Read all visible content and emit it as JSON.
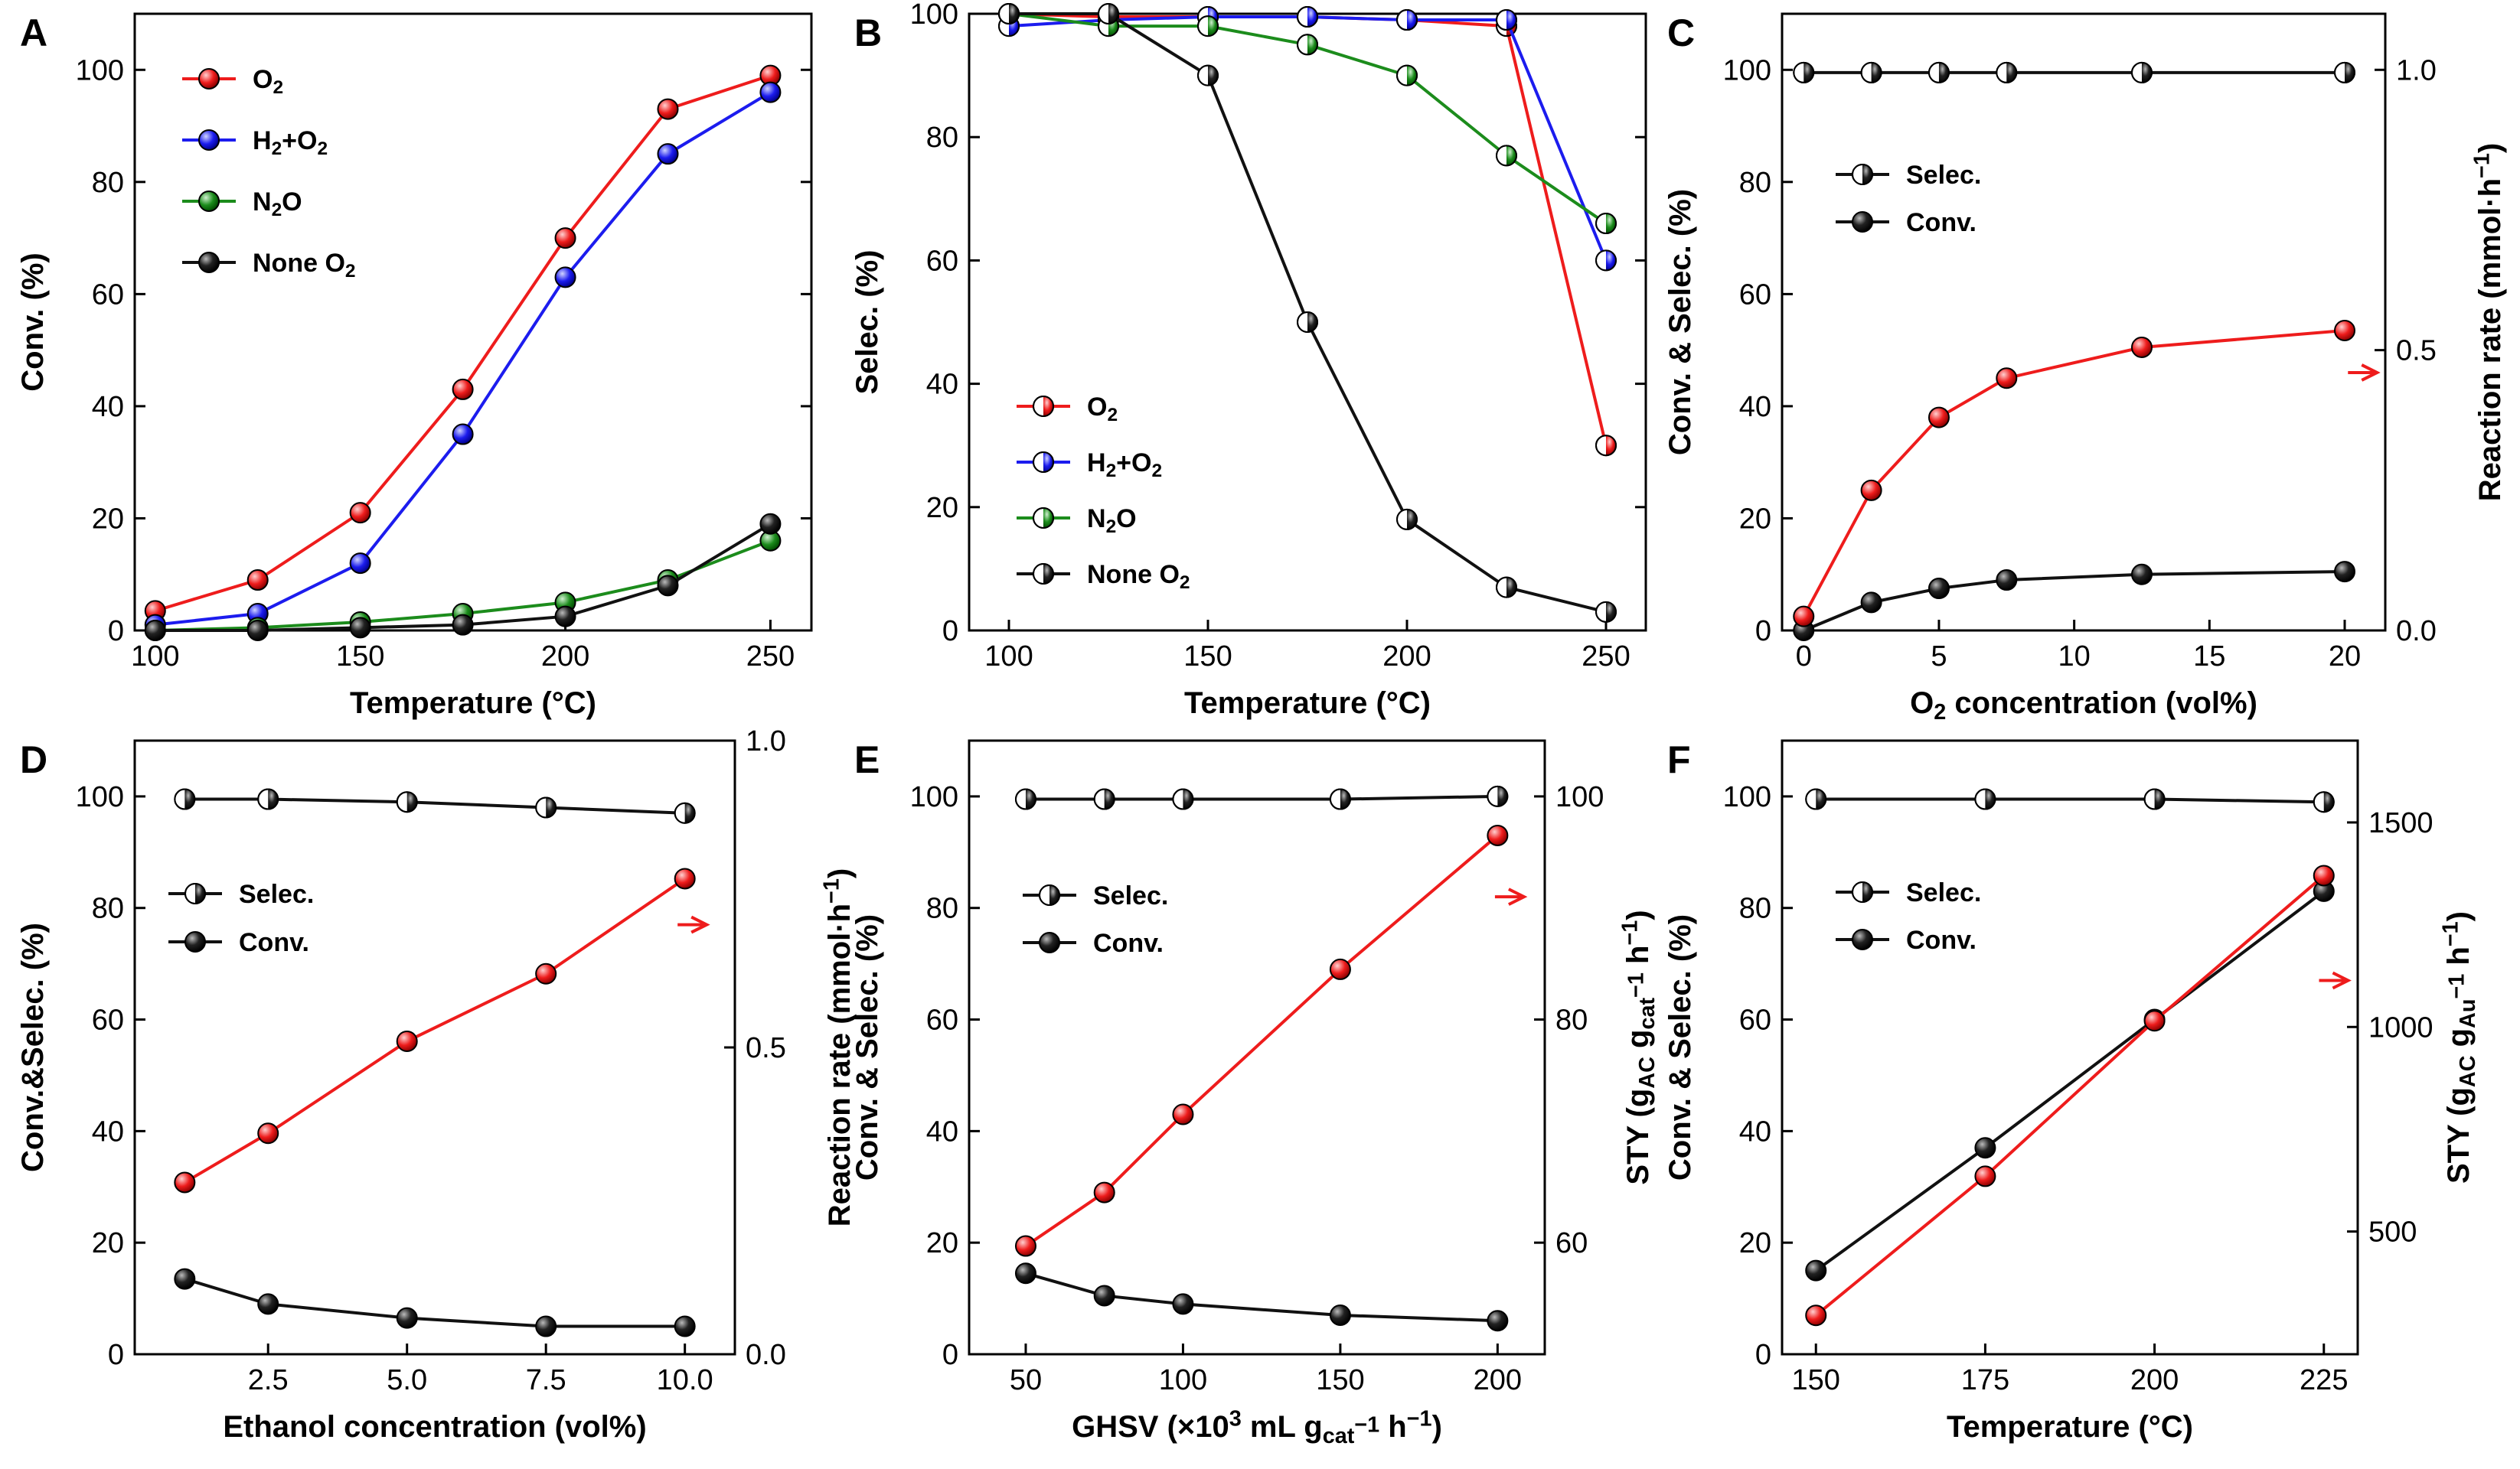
{
  "colors": {
    "red": "#ee1c1c",
    "blue": "#1c1cee",
    "green": "#1c8c1c",
    "black": "#111111"
  },
  "chart_data": [
    {
      "id": "A",
      "type": "line",
      "panel_label": "A",
      "xlabel": "Temperature (°C)",
      "ylabel": "Conv. (%)",
      "xlim": [
        95,
        260
      ],
      "ylim": [
        0,
        110
      ],
      "xticks": [
        100,
        150,
        200,
        250
      ],
      "xtick_labels": [
        "100",
        "150",
        "200",
        "250"
      ],
      "yticks": [
        0,
        20,
        40,
        60,
        80,
        100
      ],
      "ytick_labels": [
        "0",
        "20",
        "40",
        "60",
        "80",
        "100"
      ],
      "legend_position": "top-left",
      "series": [
        {
          "name": "O2",
          "legend": [
            "O",
            "2",
            ""
          ],
          "color": "red",
          "marker": "full",
          "x": [
            100,
            125,
            150,
            175,
            200,
            225,
            250
          ],
          "values": [
            3.5,
            9,
            21,
            43,
            70,
            93,
            99
          ]
        },
        {
          "name": "H2+O2",
          "legend": [
            "H",
            "2",
            "+O",
            "2"
          ],
          "color": "blue",
          "marker": "full",
          "x": [
            100,
            125,
            150,
            175,
            200,
            225,
            250
          ],
          "values": [
            1,
            3,
            12,
            35,
            63,
            85,
            96
          ]
        },
        {
          "name": "N2O",
          "legend": [
            "N",
            "2",
            "O"
          ],
          "color": "green",
          "marker": "full",
          "x": [
            100,
            125,
            150,
            175,
            200,
            225,
            250
          ],
          "values": [
            0,
            0.5,
            1.5,
            3,
            5,
            9,
            16
          ]
        },
        {
          "name": "None O2",
          "legend": [
            "None O",
            "2",
            ""
          ],
          "color": "black",
          "marker": "full",
          "x": [
            100,
            125,
            150,
            175,
            200,
            225,
            250
          ],
          "values": [
            0,
            0,
            0.5,
            1,
            2.5,
            8,
            19
          ]
        }
      ]
    },
    {
      "id": "B",
      "type": "line",
      "panel_label": "B",
      "xlabel": "Temperature (°C)",
      "ylabel": "Selec. (%)",
      "xlim": [
        90,
        260
      ],
      "ylim": [
        0,
        100
      ],
      "xticks": [
        100,
        150,
        200,
        250
      ],
      "xtick_labels": [
        "100",
        "150",
        "200",
        "250"
      ],
      "yticks": [
        0,
        20,
        40,
        60,
        80,
        100
      ],
      "ytick_labels": [
        "0",
        "20",
        "40",
        "60",
        "80",
        "100"
      ],
      "legend_position": "bottom-left",
      "series": [
        {
          "name": "O2",
          "legend": [
            "O",
            "2",
            ""
          ],
          "color": "red",
          "marker": "half",
          "x": [
            100,
            125,
            150,
            175,
            200,
            225,
            250
          ],
          "values": [
            100,
            99.5,
            99.5,
            99.5,
            99,
            98,
            30
          ]
        },
        {
          "name": "H2+O2",
          "legend": [
            "H",
            "2",
            "+O",
            "2"
          ],
          "color": "blue",
          "marker": "half",
          "x": [
            100,
            125,
            150,
            175,
            200,
            225,
            250
          ],
          "values": [
            98,
            99,
            99.5,
            99.5,
            99,
            99,
            60
          ]
        },
        {
          "name": "N2O",
          "legend": [
            "N",
            "2",
            "O"
          ],
          "color": "green",
          "marker": "half",
          "x": [
            100,
            125,
            150,
            175,
            200,
            225,
            250
          ],
          "values": [
            100,
            98,
            98,
            95,
            90,
            77,
            66
          ]
        },
        {
          "name": "None O2",
          "legend": [
            "None O",
            "2",
            ""
          ],
          "color": "black",
          "marker": "half",
          "x": [
            100,
            125,
            150,
            175,
            200,
            225,
            250
          ],
          "values": [
            100,
            100,
            90,
            50,
            18,
            7,
            3
          ]
        }
      ]
    },
    {
      "id": "C",
      "type": "line",
      "panel_label": "C",
      "xlabel": [
        "O",
        "2",
        " concentration (vol%)"
      ],
      "ylabel": "Conv. & Selec. (%)",
      "y2label": [
        "Reaction rate (mmol·h",
        "−1",
        ")"
      ],
      "xlim": [
        -0.8,
        21.5
      ],
      "ylim": [
        0,
        110
      ],
      "y2lim": [
        0,
        1.1
      ],
      "xticks": [
        0,
        5,
        10,
        15,
        20
      ],
      "xtick_labels": [
        "0",
        "5",
        "10",
        "15",
        "20"
      ],
      "yticks": [
        0,
        20,
        40,
        60,
        80,
        100
      ],
      "ytick_labels": [
        "0",
        "20",
        "40",
        "60",
        "80",
        "100"
      ],
      "y2ticks": [
        0,
        0.5,
        1.0
      ],
      "y2tick_labels": [
        "0.0",
        "0.5",
        "1.0"
      ],
      "legend_position": "upper-left",
      "annotations": [
        {
          "type": "arrow",
          "text": "→",
          "x": 20.8,
          "y": 46
        }
      ],
      "series": [
        {
          "name": "Selec.",
          "legend": [
            "Selec.",
            "",
            ""
          ],
          "color": "black",
          "marker": "half",
          "axis": "left",
          "x": [
            0,
            2.5,
            5,
            7.5,
            12.5,
            20
          ],
          "values": [
            99.5,
            99.5,
            99.5,
            99.5,
            99.5,
            99.5
          ]
        },
        {
          "name": "Conv.",
          "legend": [
            "Conv.",
            "",
            ""
          ],
          "color": "black",
          "marker": "full",
          "axis": "left",
          "x": [
            0,
            2.5,
            5,
            7.5,
            12.5,
            20
          ],
          "values": [
            0,
            5,
            7.5,
            9,
            10,
            10.5
          ]
        },
        {
          "name": "Reaction rate",
          "legend": null,
          "color": "red",
          "marker": "full",
          "axis": "right",
          "x": [
            0,
            2.5,
            5,
            7.5,
            12.5,
            20
          ],
          "values": [
            0.025,
            0.25,
            0.38,
            0.45,
            0.505,
            0.535
          ]
        }
      ]
    },
    {
      "id": "D",
      "type": "line",
      "panel_label": "D",
      "xlabel": "Ethanol concentration (vol%)",
      "ylabel": "Conv.&Selec. (%)",
      "y2label": [
        "Reaction rate (mmol·h",
        "−1",
        ")"
      ],
      "xlim": [
        0.1,
        10.9
      ],
      "ylim": [
        0,
        110
      ],
      "y2lim": [
        0,
        1.0
      ],
      "xticks": [
        2.5,
        5,
        7.5,
        10
      ],
      "xtick_labels": [
        "2.5",
        "5.0",
        "7.5",
        "10.0"
      ],
      "yticks": [
        0,
        20,
        40,
        60,
        80,
        100
      ],
      "ytick_labels": [
        "0",
        "20",
        "40",
        "60",
        "80",
        "100"
      ],
      "y2ticks": [
        0,
        0.5,
        1.0
      ],
      "y2tick_labels": [
        "0.0",
        "0.5",
        "1.0"
      ],
      "legend_position": "upper-left",
      "annotations": [
        {
          "type": "arrow",
          "text": "→",
          "x": 10.2,
          "y": 77
        }
      ],
      "series": [
        {
          "name": "Selec.",
          "legend": [
            "Selec.",
            "",
            ""
          ],
          "color": "black",
          "marker": "half",
          "axis": "left",
          "x": [
            1,
            2.5,
            5,
            7.5,
            10
          ],
          "values": [
            99.5,
            99.5,
            99,
            98,
            97
          ]
        },
        {
          "name": "Conv.",
          "legend": [
            "Conv.",
            "",
            ""
          ],
          "color": "black",
          "marker": "full",
          "axis": "left",
          "x": [
            1,
            2.5,
            5,
            7.5,
            10
          ],
          "values": [
            13.5,
            9,
            6.5,
            5,
            5
          ]
        },
        {
          "name": "Reaction rate",
          "legend": null,
          "color": "red",
          "marker": "full",
          "axis": "right",
          "x": [
            1,
            2.5,
            5,
            7.5,
            10
          ],
          "values": [
            0.28,
            0.36,
            0.51,
            0.62,
            0.775
          ]
        }
      ]
    },
    {
      "id": "E",
      "type": "line",
      "panel_label": "E",
      "xlabel": [
        "GHSV (×10",
        "3",
        " mL g",
        "cat",
        "−1",
        " h",
        "−1",
        ")"
      ],
      "ylabel": "Conv. & Selec. (%)",
      "y2label": [
        "STY (g",
        "AC",
        " g",
        "cat",
        "−1",
        " h",
        "−1",
        ")"
      ],
      "xlim": [
        32,
        215
      ],
      "ylim": [
        0,
        110
      ],
      "y2lim": [
        50,
        105
      ],
      "xticks": [
        50,
        100,
        150,
        200
      ],
      "xtick_labels": [
        "50",
        "100",
        "150",
        "200"
      ],
      "yticks": [
        0,
        20,
        40,
        60,
        80,
        100
      ],
      "ytick_labels": [
        "0",
        "20",
        "40",
        "60",
        "80",
        "100"
      ],
      "y2ticks": [
        60,
        80,
        100
      ],
      "y2tick_labels": [
        "60",
        "80",
        "100"
      ],
      "legend_position": "upper-left",
      "annotations": [
        {
          "type": "arrow",
          "text": "→",
          "x": 205,
          "y": 82
        }
      ],
      "series": [
        {
          "name": "Selec.",
          "legend": [
            "Selec.",
            "",
            ""
          ],
          "color": "black",
          "marker": "half",
          "axis": "left",
          "x": [
            50,
            75,
            100,
            150,
            200
          ],
          "values": [
            99.5,
            99.5,
            99.5,
            99.5,
            100
          ]
        },
        {
          "name": "Conv.",
          "legend": [
            "Conv.",
            "",
            ""
          ],
          "color": "black",
          "marker": "full",
          "axis": "left",
          "x": [
            50,
            75,
            100,
            150,
            200
          ],
          "values": [
            14.5,
            10.5,
            9,
            7,
            6
          ]
        },
        {
          "name": "STY",
          "legend": null,
          "color": "red",
          "marker": "full",
          "axis": "right",
          "x": [
            50,
            75,
            100,
            150,
            200
          ],
          "values": [
            59.7,
            64.5,
            71.5,
            84.5,
            96.5
          ]
        }
      ]
    },
    {
      "id": "F",
      "type": "line",
      "panel_label": "F",
      "xlabel": "Temperature (°C)",
      "ylabel": "Conv. & Selec. (%)",
      "y2label": [
        "STY (g",
        "AC",
        " g",
        "Au",
        "−1",
        " h",
        "−1",
        ")"
      ],
      "xlim": [
        145,
        230
      ],
      "ylim": [
        0,
        110
      ],
      "y2lim": [
        200,
        1700
      ],
      "xticks": [
        150,
        175,
        200,
        225
      ],
      "xtick_labels": [
        "150",
        "175",
        "200",
        "225"
      ],
      "yticks": [
        0,
        20,
        40,
        60,
        80,
        100
      ],
      "ytick_labels": [
        "0",
        "20",
        "40",
        "60",
        "80",
        "100"
      ],
      "y2ticks": [
        500,
        1000,
        1500
      ],
      "y2tick_labels": [
        "500",
        "1000",
        "1500"
      ],
      "legend_position": "upper-left",
      "annotations": [
        {
          "type": "arrow",
          "text": "→",
          "x": 227,
          "y": 67
        }
      ],
      "series": [
        {
          "name": "Selec.",
          "legend": [
            "Selec.",
            "",
            ""
          ],
          "color": "black",
          "marker": "half",
          "axis": "left",
          "x": [
            150,
            175,
            200,
            225
          ],
          "values": [
            99.5,
            99.5,
            99.5,
            99
          ]
        },
        {
          "name": "Conv.",
          "legend": [
            "Conv.",
            "",
            ""
          ],
          "color": "black",
          "marker": "full",
          "axis": "left",
          "x": [
            150,
            175,
            200,
            225
          ],
          "values": [
            15,
            37,
            60,
            83
          ]
        },
        {
          "name": "STY",
          "legend": null,
          "color": "red",
          "marker": "full",
          "axis": "right",
          "x": [
            150,
            175,
            200,
            225
          ],
          "values": [
            295,
            635,
            1015,
            1370
          ]
        }
      ]
    }
  ]
}
